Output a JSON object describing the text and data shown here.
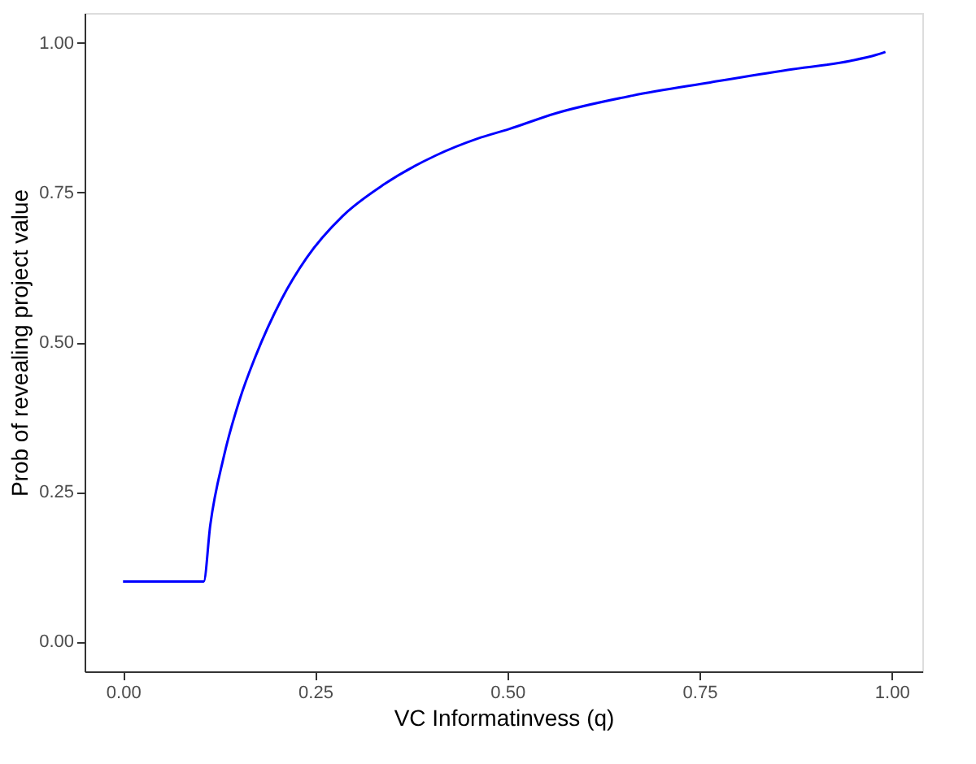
{
  "chart_data": {
    "type": "line",
    "xlabel": "VC Informatinvess (q)",
    "ylabel": "Prob of revealing project value",
    "xlim": [
      -0.05,
      1.04
    ],
    "ylim": [
      -0.05,
      1.05
    ],
    "xticks": [
      {
        "value": 0,
        "label": "0.00"
      },
      {
        "value": 0.25,
        "label": "0.25"
      },
      {
        "value": 0.5,
        "label": "0.50"
      },
      {
        "value": 0.75,
        "label": "0.75"
      },
      {
        "value": 1,
        "label": "1.00"
      }
    ],
    "yticks": [
      {
        "value": 0,
        "label": "0.00"
      },
      {
        "value": 0.25,
        "label": "0.25"
      },
      {
        "value": 0.5,
        "label": "0.50"
      },
      {
        "value": 0.75,
        "label": "0.75"
      },
      {
        "value": 1,
        "label": "1.00"
      }
    ],
    "grid": false,
    "marker": "none",
    "line_style": "solid",
    "series": [
      {
        "color": "#0000ff",
        "x": [
          0,
          0.105,
          0.1135,
          0.131,
          0.152,
          0.172,
          0.206,
          0.239,
          0.286,
          0.34,
          0.407,
          0.461,
          0.502,
          0.562,
          0.663,
          0.764,
          0.865,
          0.946,
          0.98,
          0.992
        ],
        "values": [
          0.1,
          0.1,
          0.194,
          0.308,
          0.405,
          0.475,
          0.571,
          0.641,
          0.711,
          0.764,
          0.812,
          0.84,
          0.856,
          0.882,
          0.912,
          0.934,
          0.955,
          0.97,
          0.98,
          0.985
        ]
      }
    ]
  }
}
